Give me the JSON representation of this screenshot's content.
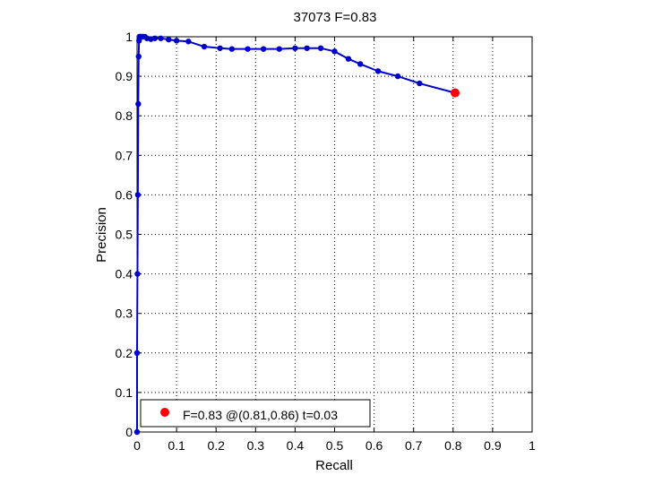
{
  "chart_data": {
    "type": "line",
    "title": "37073 F=0.83",
    "xlabel": "Recall",
    "ylabel": "Precision",
    "xlim": [
      0,
      1
    ],
    "ylim": [
      0,
      1
    ],
    "xticks": [
      0,
      0.1,
      0.2,
      0.3,
      0.4,
      0.5,
      0.6,
      0.7,
      0.8,
      0.9,
      1
    ],
    "yticks": [
      0,
      0.1,
      0.2,
      0.3,
      0.4,
      0.5,
      0.6,
      0.7,
      0.8,
      0.9,
      1
    ],
    "xtick_labels": [
      "0",
      "0.1",
      "0.2",
      "0.3",
      "0.4",
      "0.5",
      "0.6",
      "0.7",
      "0.8",
      "0.9",
      "1"
    ],
    "ytick_labels": [
      "0",
      "0.1",
      "0.2",
      "0.3",
      "0.4",
      "0.5",
      "0.6",
      "0.7",
      "0.8",
      "0.9",
      "1"
    ],
    "grid": true,
    "series": [
      {
        "color": "#0000cc",
        "marker": "circle",
        "x": [
          0.0,
          0.0,
          0.001,
          0.002,
          0.003,
          0.004,
          0.005,
          0.006,
          0.008,
          0.01,
          0.012,
          0.015,
          0.02,
          0.025,
          0.035,
          0.045,
          0.06,
          0.08,
          0.1,
          0.13,
          0.17,
          0.21,
          0.24,
          0.28,
          0.32,
          0.36,
          0.4,
          0.43,
          0.465,
          0.5,
          0.535,
          0.565,
          0.61,
          0.66,
          0.715,
          0.805
        ],
        "y": [
          0.0,
          0.2,
          0.4,
          0.6,
          0.83,
          0.95,
          0.99,
          1.0,
          1.0,
          1.0,
          1.0,
          1.0,
          1.0,
          0.996,
          0.994,
          0.996,
          0.996,
          0.993,
          0.99,
          0.988,
          0.975,
          0.971,
          0.969,
          0.969,
          0.969,
          0.969,
          0.971,
          0.971,
          0.971,
          0.963,
          0.944,
          0.931,
          0.913,
          0.9,
          0.882,
          0.858
        ]
      }
    ],
    "best_point": {
      "x": 0.805,
      "y": 0.858,
      "color": "#ff0000",
      "label": "F=0.83 @(0.81,0.86) t=0.03"
    },
    "legend": {
      "position": "bottom-left",
      "entries": [
        "F=0.83 @(0.81,0.86) t=0.03"
      ]
    }
  }
}
